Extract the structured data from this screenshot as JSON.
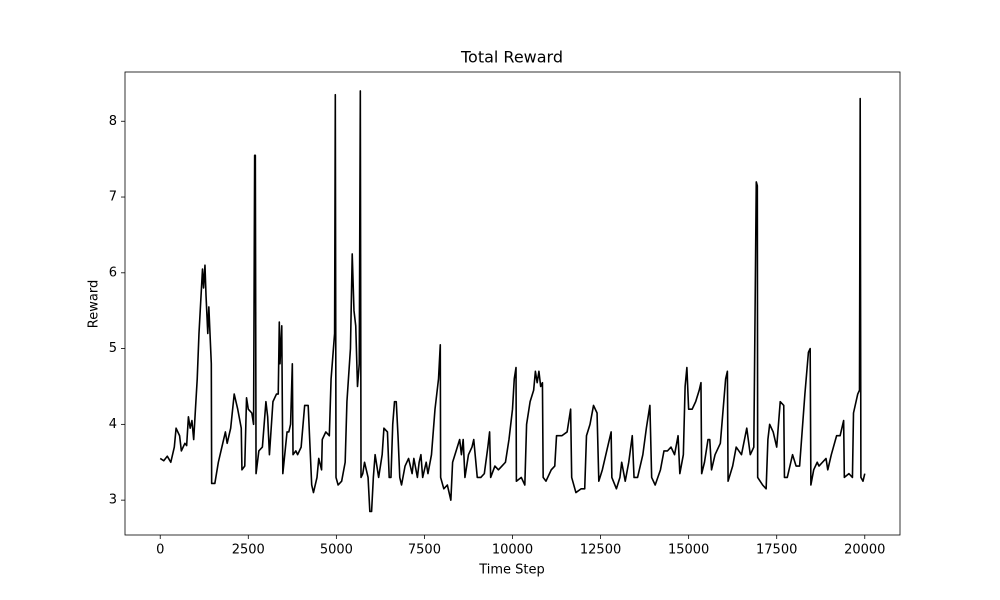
{
  "chart_data": {
    "type": "line",
    "title": "Total Reward",
    "x_label": "Time Step",
    "y_label": "Reward",
    "color": "#000000",
    "x": [
      0,
      100,
      200,
      300,
      400,
      450,
      550,
      600,
      700,
      750,
      800,
      850,
      900,
      950,
      1000,
      1050,
      1100,
      1200,
      1230,
      1270,
      1300,
      1350,
      1380,
      1450,
      1460,
      1550,
      1650,
      1750,
      1850,
      1900,
      2000,
      2100,
      2200,
      2300,
      2320,
      2400,
      2450,
      2500,
      2600,
      2650,
      2680,
      2700,
      2720,
      2800,
      2900,
      3000,
      3050,
      3100,
      3200,
      3300,
      3350,
      3380,
      3400,
      3450,
      3480,
      3600,
      3650,
      3700,
      3750,
      3770,
      3850,
      3900,
      4000,
      4100,
      4200,
      4300,
      4350,
      4450,
      4500,
      4580,
      4600,
      4700,
      4800,
      4850,
      4900,
      4950,
      4970,
      4990,
      5050,
      5150,
      5250,
      5300,
      5400,
      5450,
      5500,
      5550,
      5600,
      5650,
      5680,
      5700,
      5750,
      5800,
      5900,
      5950,
      6000,
      6050,
      6100,
      6200,
      6300,
      6350,
      6450,
      6500,
      6550,
      6600,
      6650,
      6700,
      6750,
      6800,
      6850,
      6950,
      7050,
      7150,
      7200,
      7300,
      7350,
      7400,
      7450,
      7550,
      7600,
      7700,
      7800,
      7900,
      7950,
      7960,
      8050,
      8150,
      8250,
      8300,
      8400,
      8500,
      8550,
      8600,
      8650,
      8750,
      8850,
      8900,
      9000,
      9100,
      9200,
      9300,
      9350,
      9380,
      9500,
      9600,
      9700,
      9800,
      9900,
      10000,
      10050,
      10100,
      10110,
      10250,
      10350,
      10400,
      10500,
      10600,
      10650,
      10700,
      10750,
      10800,
      10850,
      10870,
      10950,
      11100,
      11200,
      11250,
      11400,
      11550,
      11650,
      11680,
      11800,
      11950,
      12050,
      12100,
      12200,
      12300,
      12400,
      12450,
      12550,
      12700,
      12800,
      12820,
      12950,
      13050,
      13100,
      13200,
      13300,
      13400,
      13450,
      13550,
      13700,
      13800,
      13900,
      13950,
      14050,
      14200,
      14300,
      14400,
      14500,
      14600,
      14700,
      14750,
      14850,
      14900,
      14950,
      15000,
      15100,
      15200,
      15300,
      15350,
      15370,
      15450,
      15550,
      15600,
      15650,
      15750,
      15900,
      16050,
      16100,
      16120,
      16250,
      16350,
      16500,
      16650,
      16750,
      16850,
      16920,
      16950,
      16960,
      17100,
      17200,
      17250,
      17300,
      17400,
      17500,
      17600,
      17700,
      17720,
      17800,
      17900,
      17950,
      18050,
      18150,
      18300,
      18400,
      18450,
      18470,
      18550,
      18650,
      18700,
      18800,
      18900,
      18950,
      19050,
      19200,
      19300,
      19400,
      19420,
      19550,
      19650,
      19680,
      19800,
      19850,
      19870,
      19890,
      19950,
      20000
    ],
    "values": [
      3.55,
      3.52,
      3.58,
      3.5,
      3.7,
      3.95,
      3.85,
      3.65,
      3.75,
      3.72,
      4.1,
      3.95,
      4.05,
      3.8,
      4.2,
      4.6,
      5.2,
      6.05,
      5.8,
      6.1,
      5.7,
      5.2,
      5.55,
      4.8,
      3.22,
      3.22,
      3.5,
      3.7,
      3.9,
      3.75,
      3.95,
      4.4,
      4.2,
      3.95,
      3.4,
      3.45,
      4.35,
      4.2,
      4.15,
      4.0,
      7.55,
      7.55,
      3.35,
      3.65,
      3.7,
      4.3,
      4.1,
      3.6,
      4.3,
      4.4,
      4.4,
      5.35,
      4.8,
      5.3,
      3.35,
      3.9,
      3.9,
      4.0,
      4.8,
      3.6,
      3.65,
      3.6,
      3.7,
      4.25,
      4.25,
      3.2,
      3.1,
      3.3,
      3.55,
      3.4,
      3.8,
      3.9,
      3.85,
      4.6,
      4.9,
      5.2,
      8.35,
      3.3,
      3.2,
      3.25,
      3.5,
      4.3,
      5.0,
      6.25,
      5.5,
      5.3,
      4.5,
      4.8,
      8.4,
      3.3,
      3.35,
      3.5,
      3.3,
      2.85,
      2.85,
      3.3,
      3.6,
      3.3,
      3.6,
      3.95,
      3.9,
      3.3,
      3.3,
      4.0,
      4.3,
      4.3,
      3.85,
      3.3,
      3.2,
      3.45,
      3.55,
      3.35,
      3.55,
      3.3,
      3.5,
      3.6,
      3.3,
      3.5,
      3.35,
      3.6,
      4.2,
      4.6,
      5.05,
      3.3,
      3.15,
      3.2,
      3.0,
      3.5,
      3.65,
      3.8,
      3.6,
      3.8,
      3.3,
      3.6,
      3.7,
      3.8,
      3.3,
      3.3,
      3.35,
      3.7,
      3.9,
      3.3,
      3.45,
      3.4,
      3.45,
      3.5,
      3.8,
      4.2,
      4.6,
      4.75,
      3.25,
      3.3,
      3.2,
      4.0,
      4.3,
      4.45,
      4.7,
      4.55,
      4.7,
      4.5,
      4.55,
      3.3,
      3.25,
      3.4,
      3.45,
      3.85,
      3.85,
      3.9,
      4.2,
      3.3,
      3.1,
      3.15,
      3.15,
      3.85,
      4.0,
      4.25,
      4.15,
      3.25,
      3.4,
      3.7,
      3.9,
      3.3,
      3.15,
      3.3,
      3.5,
      3.25,
      3.5,
      3.85,
      3.3,
      3.3,
      3.6,
      3.95,
      4.25,
      3.3,
      3.2,
      3.4,
      3.65,
      3.65,
      3.7,
      3.6,
      3.85,
      3.35,
      3.6,
      4.5,
      4.75,
      4.2,
      4.2,
      4.3,
      4.45,
      4.55,
      3.35,
      3.5,
      3.8,
      3.8,
      3.4,
      3.6,
      3.75,
      4.6,
      4.7,
      3.25,
      3.45,
      3.7,
      3.6,
      3.95,
      3.6,
      3.7,
      7.2,
      7.15,
      3.3,
      3.2,
      3.15,
      3.8,
      4.0,
      3.9,
      3.7,
      4.3,
      4.25,
      3.3,
      3.3,
      3.5,
      3.6,
      3.45,
      3.45,
      4.4,
      4.95,
      5.0,
      3.2,
      3.4,
      3.5,
      3.45,
      3.5,
      3.55,
      3.4,
      3.6,
      3.85,
      3.85,
      4.05,
      3.3,
      3.35,
      3.3,
      4.15,
      4.4,
      4.45,
      8.3,
      3.3,
      3.25,
      3.35
    ],
    "xlim": [
      -1000,
      21000
    ],
    "ylim": [
      2.54,
      8.65
    ],
    "xticks": [
      0,
      2500,
      5000,
      7500,
      10000,
      12500,
      15000,
      17500,
      20000
    ],
    "yticks": [
      3,
      4,
      5,
      6,
      7,
      8
    ],
    "grid": false
  }
}
